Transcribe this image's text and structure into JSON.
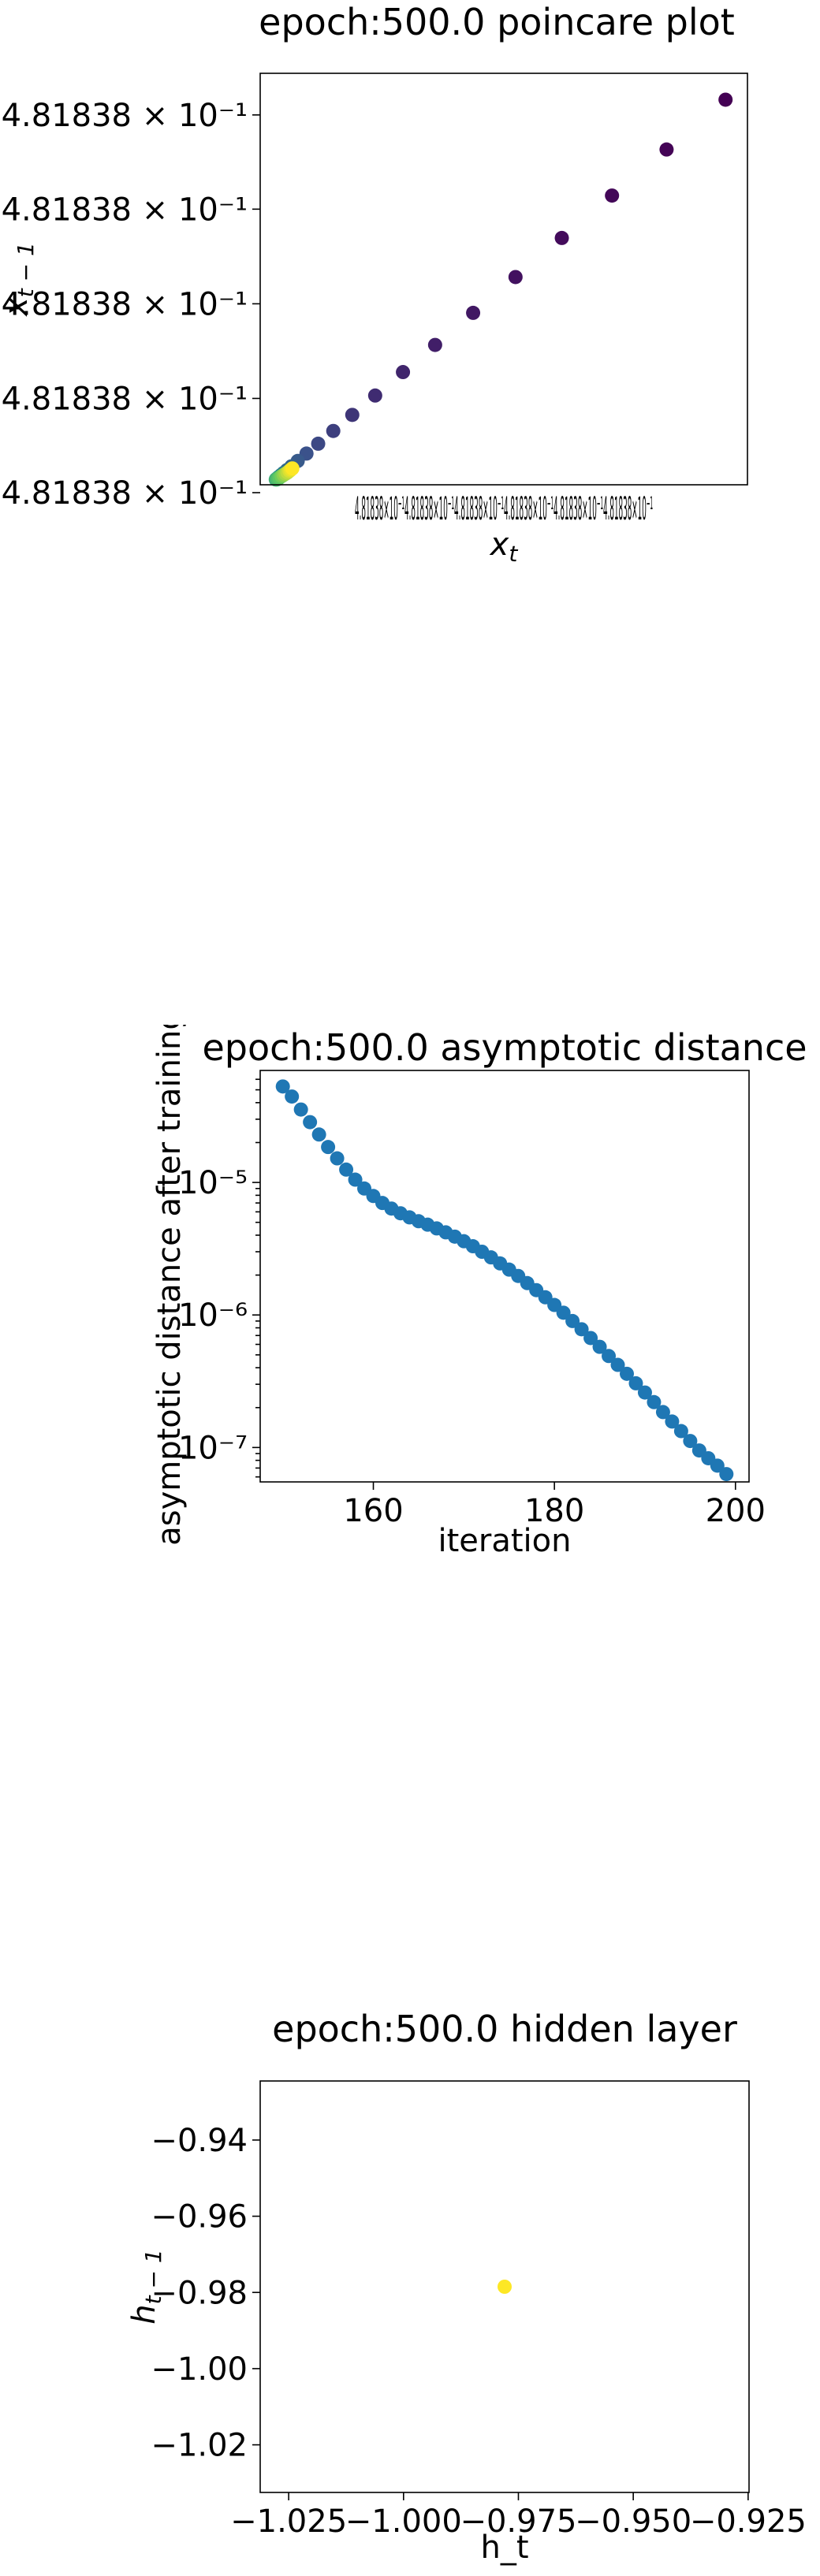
{
  "chart_data": [
    {
      "type": "scatter",
      "title": "epoch:500.0 poincare plot",
      "xlabel": "x_t",
      "ylabel": "x_{t-1}",
      "colormap": "viridis",
      "scale": "log",
      "xlim": [
        0.0,
        1.0
      ],
      "ylim": [
        0.0,
        1.0
      ],
      "yticks": [
        {
          "value": 0.0,
          "label": "4.81838 × 10⁻¹"
        },
        {
          "value": 0.229,
          "label": "4.81838 × 10⁻¹"
        },
        {
          "value": 0.459,
          "label": "4.81838 × 10⁻¹"
        },
        {
          "value": 0.689,
          "label": "4.81838 × 10⁻¹"
        },
        {
          "value": 0.918,
          "label": "4.81838 × 10⁻¹"
        }
      ],
      "xtick_label_overlap": "4.81838×10⁻¹4.81838×10⁻¹4.81838×10⁻¹4.81838×10⁻¹4.81838×10⁻¹4.81838×10⁻¹",
      "points": [
        {
          "x": 0.955,
          "y": 0.955,
          "t": 0.0
        },
        {
          "x": 0.834,
          "y": 0.834,
          "t": 0.01
        },
        {
          "x": 0.722,
          "y": 0.722,
          "t": 0.02
        },
        {
          "x": 0.619,
          "y": 0.619,
          "t": 0.03
        },
        {
          "x": 0.524,
          "y": 0.524,
          "t": 0.05
        },
        {
          "x": 0.437,
          "y": 0.437,
          "t": 0.07
        },
        {
          "x": 0.359,
          "y": 0.359,
          "t": 0.09
        },
        {
          "x": 0.293,
          "y": 0.293,
          "t": 0.11
        },
        {
          "x": 0.236,
          "y": 0.236,
          "t": 0.13
        },
        {
          "x": 0.189,
          "y": 0.189,
          "t": 0.16
        },
        {
          "x": 0.15,
          "y": 0.15,
          "t": 0.19
        },
        {
          "x": 0.119,
          "y": 0.119,
          "t": 0.22
        },
        {
          "x": 0.095,
          "y": 0.095,
          "t": 0.25
        },
        {
          "x": 0.077,
          "y": 0.077,
          "t": 0.28
        },
        {
          "x": 0.064,
          "y": 0.064,
          "t": 0.31
        },
        {
          "x": 0.055,
          "y": 0.055,
          "t": 0.34
        },
        {
          "x": 0.048,
          "y": 0.048,
          "t": 0.38
        },
        {
          "x": 0.043,
          "y": 0.043,
          "t": 0.42
        },
        {
          "x": 0.039,
          "y": 0.039,
          "t": 0.46
        },
        {
          "x": 0.036,
          "y": 0.036,
          "t": 0.5
        },
        {
          "x": 0.034,
          "y": 0.034,
          "t": 0.54
        },
        {
          "x": 0.033,
          "y": 0.033,
          "t": 0.58
        },
        {
          "x": 0.032,
          "y": 0.032,
          "t": 0.62
        },
        {
          "x": 0.034,
          "y": 0.032,
          "t": 0.66
        },
        {
          "x": 0.037,
          "y": 0.034,
          "t": 0.7
        },
        {
          "x": 0.04,
          "y": 0.037,
          "t": 0.74
        },
        {
          "x": 0.044,
          "y": 0.04,
          "t": 0.78
        },
        {
          "x": 0.048,
          "y": 0.043,
          "t": 0.82
        },
        {
          "x": 0.052,
          "y": 0.046,
          "t": 0.86
        },
        {
          "x": 0.056,
          "y": 0.049,
          "t": 0.9
        },
        {
          "x": 0.06,
          "y": 0.053,
          "t": 0.94
        },
        {
          "x": 0.063,
          "y": 0.056,
          "t": 0.97
        },
        {
          "x": 0.066,
          "y": 0.059,
          "t": 1.0
        }
      ]
    },
    {
      "type": "scatter",
      "title": "epoch:500.0 asymptotic distance",
      "xlabel": "iteration",
      "ylabel": "asymptotic distance after training",
      "yscale": "log",
      "xlim": [
        147.5,
        201.5
      ],
      "ylim": [
        5.5e-08,
        7e-05
      ],
      "xticks": [
        160,
        180,
        200
      ],
      "yticks": [
        1e-07,
        1e-06,
        1e-05
      ],
      "ytick_labels": [
        "10⁻⁷",
        "10⁻⁶",
        "10⁻⁵"
      ],
      "color": "#1f77b4",
      "x": [
        150,
        151,
        152,
        153,
        154,
        155,
        156,
        157,
        158,
        159,
        160,
        161,
        162,
        163,
        164,
        165,
        166,
        167,
        168,
        169,
        170,
        171,
        172,
        173,
        174,
        175,
        176,
        177,
        178,
        179,
        180,
        181,
        182,
        183,
        184,
        185,
        186,
        187,
        188,
        189,
        190,
        191,
        192,
        193,
        194,
        195,
        196,
        197,
        198,
        199
      ],
      "values": [
        5.3e-05,
        4.45e-05,
        3.55e-05,
        2.85e-05,
        2.3e-05,
        1.85e-05,
        1.52e-05,
        1.25e-05,
        1.05e-05,
        9e-06,
        7.9e-06,
        7e-06,
        6.35e-06,
        5.85e-06,
        5.45e-06,
        5.1e-06,
        4.8e-06,
        4.5e-06,
        4.2e-06,
        3.9e-06,
        3.6e-06,
        3.3e-06,
        3e-06,
        2.72e-06,
        2.45e-06,
        2.2e-06,
        1.97e-06,
        1.74e-06,
        1.54e-06,
        1.36e-06,
        1.19e-06,
        1.04e-06,
        9e-07,
        7.8e-07,
        6.7e-07,
        5.75e-07,
        4.9e-07,
        4.2e-07,
        3.6e-07,
        3.05e-07,
        2.6e-07,
        2.2e-07,
        1.85e-07,
        1.57e-07,
        1.33e-07,
        1.12e-07,
        9.5e-08,
        8.3e-08,
        7.3e-08,
        6.3e-08
      ]
    },
    {
      "type": "scatter",
      "title": "epoch:500.0 hidden layer",
      "xlabel": "h_t",
      "ylabel": "h_{t-1}",
      "xlim": [
        -1.0312,
        -0.9248
      ],
      "ylim": [
        -1.0325,
        -0.9245
      ],
      "xticks": [
        -1.025,
        -1.0,
        -0.975,
        -0.95,
        -0.925
      ],
      "xtick_labels": [
        "−1.025",
        "−1.000",
        "−0.975",
        "−0.950",
        "−0.925"
      ],
      "yticks": [
        -0.94,
        -0.96,
        -0.98,
        -1.0,
        -1.02
      ],
      "ytick_labels": [
        "−0.94",
        "−0.96",
        "−0.98",
        "−1.00",
        "−1.02"
      ],
      "color": "#fde725",
      "points": [
        {
          "x": -0.978,
          "y": -0.9785
        }
      ]
    }
  ]
}
